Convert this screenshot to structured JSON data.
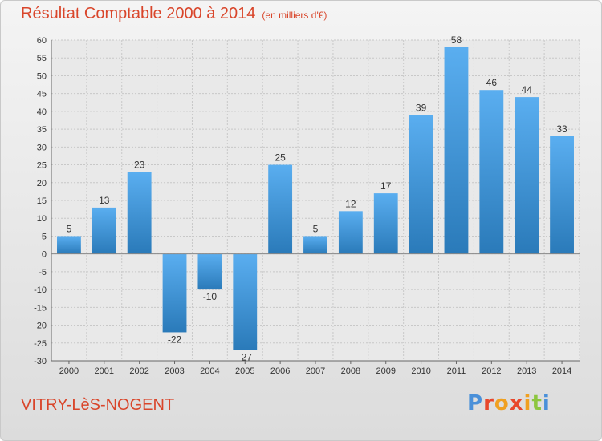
{
  "header": {
    "title": "Résultat Comptable 2000 à 2014",
    "subtitle": "(en milliers d'€)"
  },
  "footer": {
    "commune": "VITRY-LèS-NOGENT",
    "logo": "Proxiti",
    "logo_colors": [
      "#4a90d9",
      "#e8472b",
      "#f0a020",
      "#e8472b",
      "#f0a020",
      "#8cc63f",
      "#4a90d9"
    ]
  },
  "colors": {
    "accent": "#d9452a",
    "bar_top": "#5aaef0",
    "bar_bottom": "#2a7ab9",
    "grid": "#c8c8c8",
    "plot_bg": "#e9e9e9"
  },
  "chart_data": {
    "type": "bar",
    "title": "Résultat Comptable 2000 à 2014",
    "subtitle": "(en milliers d'€)",
    "xlabel": "",
    "ylabel": "",
    "categories": [
      "2000",
      "2001",
      "2002",
      "2003",
      "2004",
      "2005",
      "2006",
      "2007",
      "2008",
      "2009",
      "2010",
      "2011",
      "2012",
      "2013",
      "2014"
    ],
    "values": [
      5,
      13,
      23,
      -22,
      -10,
      -27,
      25,
      5,
      12,
      17,
      39,
      58,
      46,
      44,
      33
    ],
    "value_labels": [
      "5",
      "13",
      "23",
      "-22",
      "-10",
      "-27",
      "25",
      "5",
      "12",
      "17",
      "39",
      "58",
      "46",
      "44",
      "33"
    ],
    "ylim": [
      -30,
      60
    ],
    "yticks": [
      -30,
      -25,
      -20,
      -15,
      -10,
      -5,
      0,
      5,
      10,
      15,
      20,
      25,
      30,
      35,
      40,
      45,
      50,
      55,
      60
    ],
    "ytick_labels": [
      "-30",
      "-25",
      "-20",
      "-15",
      "-10",
      "-5",
      "0",
      "5",
      "10",
      "15",
      "20",
      "25",
      "30",
      "35",
      "40",
      "45",
      "50",
      "55",
      "60"
    ],
    "grid": true,
    "legend": "none"
  }
}
